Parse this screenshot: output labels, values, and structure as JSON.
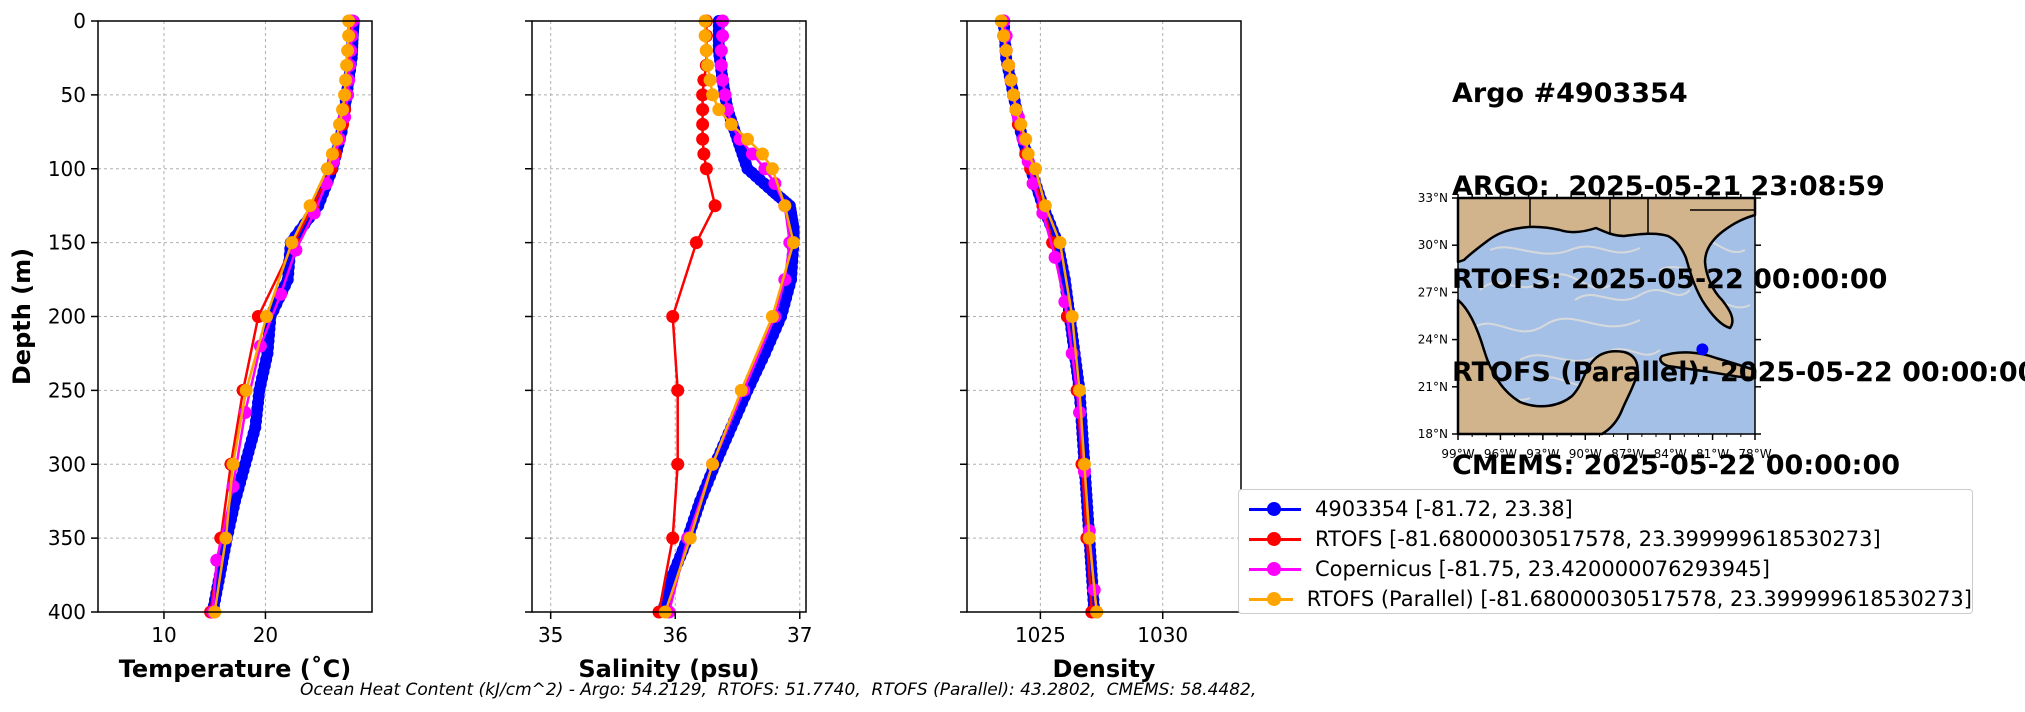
{
  "header": {
    "lines": [
      "Argo #4903354",
      "ARGO:  2025-05-21 23:08:59",
      "RTOFS: 2025-05-22 00:00:00",
      "RTOFS (Parallel): 2025-05-22 00:00:00",
      "CMEMS: 2025-05-22 00:00:00"
    ]
  },
  "footnote": "Ocean Heat Content (kJ/cm^2) - Argo: 54.2129,  RTOFS: 51.7740,  RTOFS (Parallel): 43.2802,  CMEMS: 58.4482,",
  "legend": {
    "entries": [
      {
        "label": "4903354 [-81.72, 23.38]",
        "color": "#0000ff"
      },
      {
        "label": "RTOFS [-81.68000030517578, 23.399999618530273]",
        "color": "#ff0000"
      },
      {
        "label": "Copernicus [-81.75, 23.420000076293945]",
        "color": "#ff00ff"
      },
      {
        "label": "RTOFS (Parallel) [-81.68000030517578, 23.399999618530273]",
        "color": "#ffa500"
      }
    ]
  },
  "colors": {
    "argo": "#0000ff",
    "rtofs": "#ff0000",
    "copernicus": "#ff00ff",
    "parallel": "#ffa500",
    "land": "#d2b48c",
    "ocean": "#a5c0e6",
    "streamlines": "#d9d9d9"
  },
  "chart_data": [
    {
      "type": "line",
      "xlabel": "Temperature (˚C)",
      "ylabel": "Depth (m)",
      "xlim": [
        3.5,
        30.5
      ],
      "ylim": [
        400,
        0
      ],
      "xticks": [
        10,
        20
      ],
      "yticks": [
        0,
        50,
        100,
        150,
        200,
        250,
        300,
        350,
        400
      ],
      "grid": true,
      "series": [
        {
          "name": "4903354 [-81.72, 23.38]",
          "color": "#0000ff",
          "style": "thick",
          "depth": [
            0,
            10,
            25,
            50,
            75,
            100,
            125,
            150,
            175,
            200,
            225,
            250,
            275,
            300,
            325,
            350,
            375,
            400
          ],
          "values": [
            28.7,
            28.6,
            28.5,
            28.0,
            27.5,
            26.6,
            25.2,
            22.5,
            22.2,
            20.5,
            20.2,
            19.4,
            19.0,
            18.0,
            17.0,
            16.2,
            15.5,
            14.8
          ]
        },
        {
          "name": "RTOFS [-81.68000030517578, 23.399999618530273]",
          "color": "#ff0000",
          "depth": [
            0,
            10,
            20,
            30,
            40,
            50,
            60,
            70,
            80,
            90,
            100,
            125,
            150,
            200,
            250,
            300,
            350,
            400
          ],
          "values": [
            28.3,
            28.3,
            28.2,
            28.2,
            28.1,
            28.0,
            27.8,
            27.6,
            27.2,
            26.9,
            26.5,
            24.7,
            22.8,
            19.3,
            17.8,
            16.6,
            15.6,
            14.6
          ]
        },
        {
          "name": "Copernicus [-81.75, 23.420000076293945]",
          "color": "#ff00ff",
          "depth": [
            0,
            10,
            20,
            30,
            40,
            50,
            65,
            80,
            95,
            110,
            130,
            155,
            185,
            220,
            265,
            315,
            365,
            400
          ],
          "values": [
            28.6,
            28.5,
            28.4,
            28.3,
            28.2,
            28.1,
            27.8,
            27.3,
            26.7,
            26.0,
            24.8,
            23.0,
            21.5,
            19.5,
            18.0,
            16.8,
            15.2,
            14.8
          ]
        },
        {
          "name": "RTOFS (Parallel) [-81.68000030517578, 23.399999618530273]",
          "color": "#ffa500",
          "depth": [
            0,
            10,
            20,
            30,
            40,
            50,
            60,
            70,
            80,
            90,
            100,
            125,
            150,
            200,
            250,
            300,
            350,
            400
          ],
          "values": [
            28.2,
            28.2,
            28.1,
            28.0,
            27.9,
            27.8,
            27.6,
            27.3,
            27.0,
            26.6,
            26.1,
            24.4,
            22.6,
            20.1,
            18.1,
            16.8,
            16.1,
            15.0
          ]
        }
      ]
    },
    {
      "type": "line",
      "xlabel": "Salinity (psu)",
      "ylabel": "",
      "xlim": [
        34.85,
        37.05
      ],
      "ylim": [
        400,
        0
      ],
      "xticks": [
        35,
        36,
        37
      ],
      "yticks": [
        0,
        50,
        100,
        150,
        200,
        250,
        300,
        350,
        400
      ],
      "grid": true,
      "series": [
        {
          "name": "4903354 [-81.72, 23.38]",
          "color": "#0000ff",
          "style": "thick",
          "depth": [
            0,
            20,
            40,
            60,
            80,
            100,
            115,
            125,
            140,
            150,
            175,
            200,
            225,
            250,
            275,
            300,
            325,
            350,
            375,
            400
          ],
          "values": [
            36.35,
            36.35,
            36.38,
            36.42,
            36.5,
            36.58,
            36.78,
            36.92,
            36.95,
            36.95,
            36.93,
            36.85,
            36.72,
            36.58,
            36.45,
            36.32,
            36.2,
            36.1,
            35.98,
            35.9
          ]
        },
        {
          "name": "RTOFS [-81.68000030517578, 23.399999618530273]",
          "color": "#ff0000",
          "depth": [
            0,
            10,
            20,
            30,
            40,
            50,
            60,
            70,
            80,
            90,
            100,
            125,
            150,
            200,
            250,
            300,
            350,
            400
          ],
          "values": [
            36.25,
            36.25,
            36.25,
            36.25,
            36.23,
            36.22,
            36.22,
            36.22,
            36.22,
            36.23,
            36.25,
            36.32,
            36.17,
            35.98,
            36.02,
            36.02,
            35.98,
            35.87
          ]
        },
        {
          "name": "Copernicus [-81.75, 23.420000076293945]",
          "color": "#ff00ff",
          "depth": [
            0,
            10,
            20,
            30,
            40,
            50,
            60,
            70,
            80,
            90,
            100,
            110,
            125,
            150,
            175,
            200,
            250,
            300,
            350,
            400
          ],
          "values": [
            36.38,
            36.38,
            36.37,
            36.37,
            36.38,
            36.4,
            36.42,
            36.45,
            36.52,
            36.62,
            36.72,
            36.8,
            36.88,
            36.92,
            36.88,
            36.8,
            36.55,
            36.3,
            36.1,
            35.95
          ]
        },
        {
          "name": "RTOFS (Parallel) [-81.68000030517578, 23.399999618530273]",
          "color": "#ffa500",
          "depth": [
            0,
            10,
            20,
            30,
            40,
            50,
            60,
            70,
            80,
            90,
            100,
            125,
            150,
            200,
            250,
            300,
            350,
            400
          ],
          "values": [
            36.24,
            36.24,
            36.25,
            36.26,
            36.28,
            36.3,
            36.35,
            36.45,
            36.58,
            36.7,
            36.78,
            36.88,
            36.95,
            36.78,
            36.53,
            36.3,
            36.12,
            35.92
          ]
        }
      ]
    },
    {
      "type": "line",
      "xlabel": "Density",
      "ylabel": "",
      "xlim": [
        1022.0,
        1033.2
      ],
      "ylim": [
        400,
        0
      ],
      "xticks": [
        1025,
        1030
      ],
      "yticks": [
        0,
        50,
        100,
        150,
        200,
        250,
        300,
        350,
        400
      ],
      "grid": true,
      "series": [
        {
          "name": "4903354 [-81.72, 23.38]",
          "color": "#0000ff",
          "style": "thick",
          "depth": [
            0,
            25,
            50,
            75,
            100,
            125,
            150,
            175,
            200,
            225,
            250,
            275,
            300,
            325,
            350,
            375,
            400
          ],
          "values": [
            1023.5,
            1023.6,
            1023.9,
            1024.2,
            1024.6,
            1025.1,
            1025.7,
            1026.0,
            1026.2,
            1026.4,
            1026.6,
            1026.7,
            1026.8,
            1026.9,
            1027.0,
            1027.1,
            1027.2
          ]
        },
        {
          "name": "RTOFS [-81.68000030517578, 23.399999618530273]",
          "color": "#ff0000",
          "depth": [
            0,
            10,
            20,
            30,
            40,
            50,
            60,
            70,
            80,
            90,
            100,
            125,
            150,
            200,
            250,
            300,
            350,
            400
          ],
          "values": [
            1023.5,
            1023.5,
            1023.6,
            1023.7,
            1023.8,
            1023.9,
            1024.0,
            1024.1,
            1024.3,
            1024.4,
            1024.6,
            1025.1,
            1025.5,
            1026.1,
            1026.5,
            1026.7,
            1026.9,
            1027.1
          ]
        },
        {
          "name": "Copernicus [-81.75, 23.420000076293945]",
          "color": "#ff00ff",
          "depth": [
            0,
            10,
            20,
            30,
            40,
            50,
            65,
            80,
            95,
            110,
            130,
            160,
            190,
            225,
            265,
            305,
            345,
            385,
            400
          ],
          "values": [
            1023.5,
            1023.6,
            1023.6,
            1023.7,
            1023.8,
            1023.9,
            1024.1,
            1024.3,
            1024.5,
            1024.7,
            1025.1,
            1025.6,
            1026.0,
            1026.3,
            1026.6,
            1026.8,
            1027.0,
            1027.2,
            1027.3
          ]
        },
        {
          "name": "RTOFS (Parallel) [-81.68000030517578, 23.399999618530273]",
          "color": "#ffa500",
          "depth": [
            0,
            10,
            20,
            30,
            40,
            50,
            60,
            70,
            80,
            90,
            100,
            125,
            150,
            200,
            250,
            300,
            350,
            400
          ],
          "values": [
            1023.4,
            1023.5,
            1023.6,
            1023.7,
            1023.8,
            1023.9,
            1024.0,
            1024.2,
            1024.4,
            1024.5,
            1024.8,
            1025.2,
            1025.8,
            1026.3,
            1026.6,
            1026.8,
            1027.0,
            1027.3
          ]
        }
      ]
    }
  ],
  "map": {
    "lon_range": [
      -99,
      -78
    ],
    "lat_range": [
      18,
      33
    ],
    "lon_labels": [
      "99°W",
      "96°W",
      "93°W",
      "90°W",
      "87°W",
      "84°W",
      "81°W",
      "78°W"
    ],
    "lat_labels": [
      "18°N",
      "21°N",
      "24°N",
      "27°N",
      "30°N",
      "33°N"
    ],
    "float_position": {
      "lon": -81.72,
      "lat": 23.38
    }
  }
}
